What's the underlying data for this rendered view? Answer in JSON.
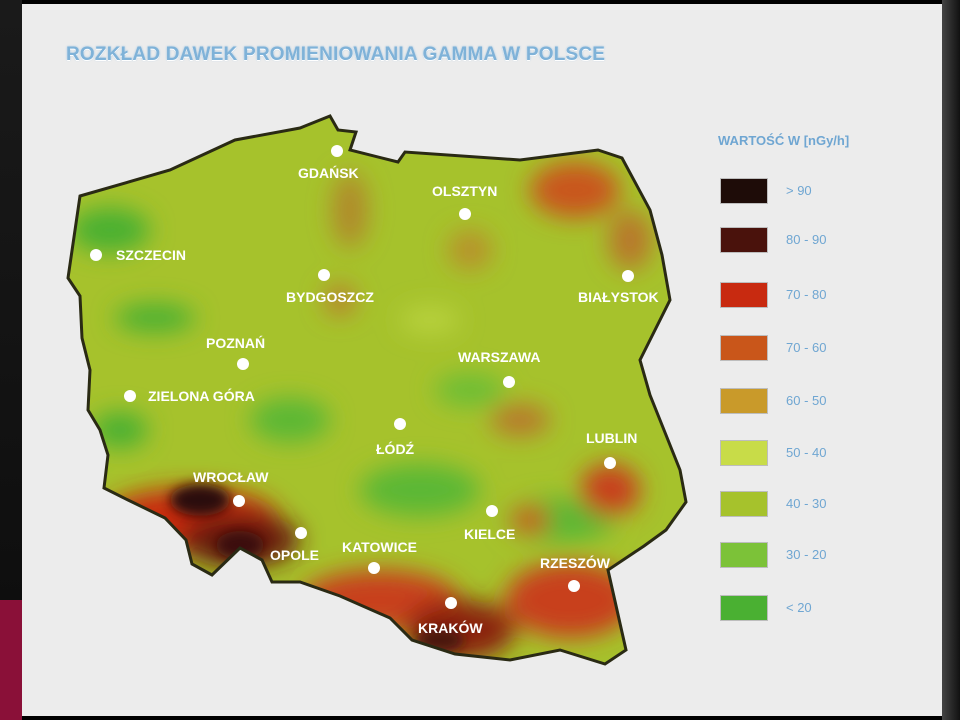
{
  "title": "ROZKŁAD DAWEK PROMIENIOWANIA GAMMA W POLSCE",
  "legend": {
    "title": "WARTOŚĆ W [nGy/h]",
    "items": [
      {
        "label": "> 90",
        "color": "#1e0c08"
      },
      {
        "label": "80 - 90",
        "color": "#4a120c"
      },
      {
        "label": "70 - 80",
        "color": "#c82a10"
      },
      {
        "label": "70 - 60",
        "color": "#c9561a"
      },
      {
        "label": "60 - 50",
        "color": "#c99a2a"
      },
      {
        "label": "50 - 40",
        "color": "#c8dc48"
      },
      {
        "label": "40 - 30",
        "color": "#a6c22c"
      },
      {
        "label": "30 - 20",
        "color": "#7cc238"
      },
      {
        "label": "< 20",
        "color": "#4ab032"
      }
    ]
  },
  "cities": [
    {
      "name": "GDAŃSK"
    },
    {
      "name": "OLSZTYN"
    },
    {
      "name": "SZCZECIN"
    },
    {
      "name": "BYDGOSZCZ"
    },
    {
      "name": "BIAŁYSTOK"
    },
    {
      "name": "POZNAŃ"
    },
    {
      "name": "WARSZAWA"
    },
    {
      "name": "ZIELONA GÓRA"
    },
    {
      "name": "ŁÓDŹ"
    },
    {
      "name": "LUBLIN"
    },
    {
      "name": "WROCŁAW"
    },
    {
      "name": "KIELCE"
    },
    {
      "name": "OPOLE"
    },
    {
      "name": "KATOWICE"
    },
    {
      "name": "RZESZÓW"
    },
    {
      "name": "KRAKÓW"
    }
  ]
}
